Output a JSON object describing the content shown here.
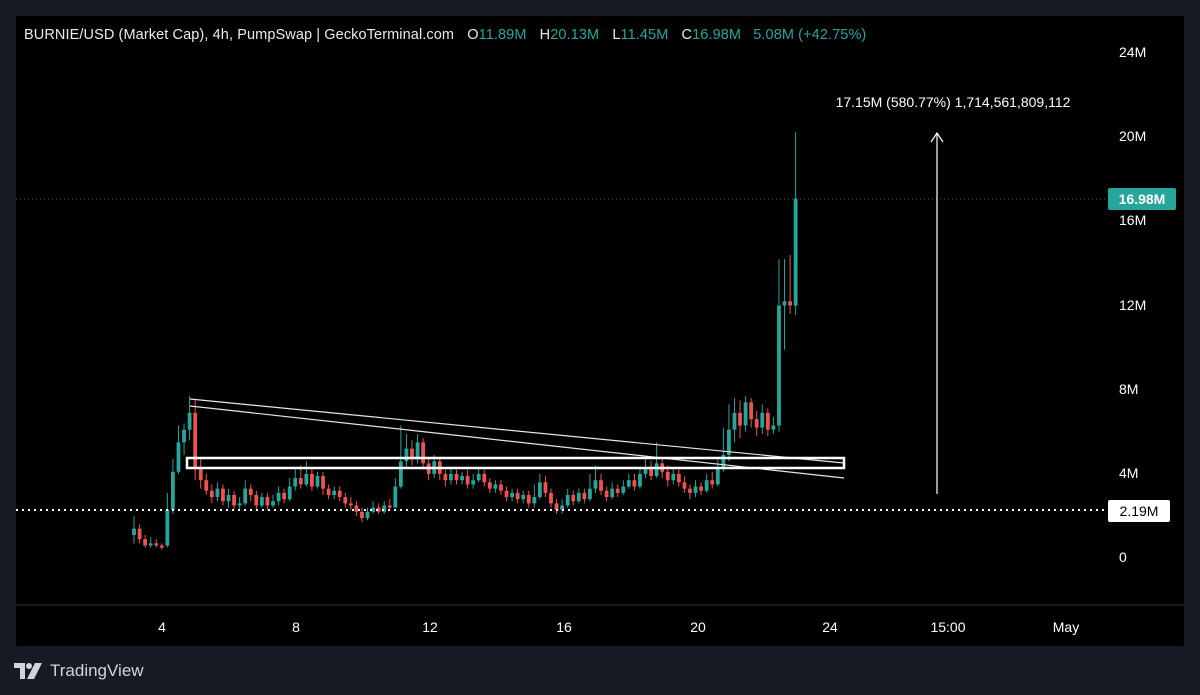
{
  "header": {
    "symbol_title": "BURNIE/USD (Market Cap), 4h, PumpSwap | GeckoTerminal.com",
    "open_key": "O",
    "open": "11.89M",
    "high_key": "H",
    "high": "20.13M",
    "low_key": "L",
    "low": "11.45M",
    "close_key": "C",
    "close": "16.98M",
    "change": "5.08M (+42.75%)"
  },
  "annotation": {
    "measure_label": "17.15M (580.77%) 1,714,561,809,112"
  },
  "price_scale": {
    "ticks": [
      "24M",
      "20M",
      "16M",
      "12M",
      "8M",
      "4M",
      "0"
    ],
    "current_price_badge": "16.98M",
    "support_badge": "2.19M"
  },
  "time_scale": {
    "ticks": [
      "4",
      "8",
      "12",
      "16",
      "20",
      "24",
      "15:00",
      "May"
    ]
  },
  "footer": {
    "brand": "TradingView"
  },
  "colors": {
    "up": "#26a69a",
    "down": "#ef5350",
    "background": "#000000",
    "frame": "#161a25",
    "badge": "#26a69a"
  },
  "chart_data": {
    "type": "candlestick",
    "title": "BURNIE/USD (Market Cap), 4h, PumpSwap | GeckoTerminal.com",
    "y_unit": "M USD",
    "ylim": [
      -2,
      26
    ],
    "x_range": [
      "Apr 3 00:00",
      "May 2 00:00"
    ],
    "last_close": 16.98,
    "support_level": 2.19,
    "candles": [
      [
        1.0,
        1.3,
        1.9,
        0.6
      ],
      [
        1.3,
        0.8,
        1.5,
        0.6
      ],
      [
        0.8,
        0.5,
        1.0,
        0.4
      ],
      [
        0.5,
        0.6,
        0.9,
        0.4
      ],
      [
        0.6,
        0.5,
        0.8,
        0.4
      ],
      [
        0.5,
        0.4,
        0.6,
        0.3
      ],
      [
        0.5,
        2.2,
        3.0,
        0.4
      ],
      [
        2.2,
        4.0,
        4.6,
        2.0
      ],
      [
        4.0,
        5.4,
        6.2,
        3.9
      ],
      [
        5.4,
        6.0,
        6.3,
        4.8
      ],
      [
        6.0,
        6.8,
        7.6,
        5.5
      ],
      [
        6.8,
        4.2,
        7.4,
        3.6
      ],
      [
        4.2,
        3.6,
        4.6,
        3.2
      ],
      [
        3.6,
        3.1,
        3.9,
        2.9
      ],
      [
        3.1,
        2.8,
        3.4,
        2.5
      ],
      [
        2.8,
        3.2,
        3.5,
        2.6
      ],
      [
        3.2,
        2.6,
        3.4,
        2.4
      ],
      [
        2.6,
        2.9,
        3.2,
        2.3
      ],
      [
        2.9,
        2.4,
        3.1,
        2.2
      ],
      [
        2.4,
        2.5,
        2.8,
        2.2
      ],
      [
        2.5,
        3.2,
        3.6,
        2.4
      ],
      [
        3.2,
        2.9,
        3.4,
        2.6
      ],
      [
        2.9,
        2.4,
        3.1,
        2.2
      ],
      [
        2.4,
        2.8,
        3.0,
        2.3
      ],
      [
        2.8,
        2.4,
        3.0,
        2.2
      ],
      [
        2.4,
        2.6,
        2.9,
        2.3
      ],
      [
        2.6,
        3.0,
        3.3,
        2.4
      ],
      [
        3.0,
        2.7,
        3.2,
        2.5
      ],
      [
        2.7,
        3.3,
        3.7,
        2.6
      ],
      [
        3.3,
        3.7,
        4.1,
        3.1
      ],
      [
        3.7,
        3.4,
        4.3,
        3.2
      ],
      [
        3.4,
        3.9,
        4.5,
        3.3
      ],
      [
        3.9,
        3.3,
        4.2,
        3.1
      ],
      [
        3.3,
        3.8,
        4.0,
        3.2
      ],
      [
        3.8,
        3.2,
        4.0,
        2.9
      ],
      [
        3.2,
        2.9,
        3.4,
        2.7
      ],
      [
        2.9,
        3.1,
        3.3,
        2.7
      ],
      [
        3.1,
        2.8,
        3.3,
        2.6
      ],
      [
        2.8,
        2.5,
        3.0,
        2.3
      ],
      [
        2.5,
        2.4,
        2.8,
        2.2
      ],
      [
        2.4,
        2.1,
        2.6,
        1.9
      ],
      [
        2.1,
        1.8,
        2.3,
        1.6
      ],
      [
        1.8,
        2.1,
        2.3,
        1.7
      ],
      [
        2.1,
        2.3,
        2.6,
        2.0
      ],
      [
        2.3,
        2.1,
        2.5,
        2.0
      ],
      [
        2.1,
        2.4,
        2.6,
        2.0
      ],
      [
        2.4,
        2.3,
        2.7,
        2.2
      ],
      [
        2.3,
        3.3,
        3.7,
        2.3
      ],
      [
        3.3,
        4.5,
        6.2,
        3.2
      ],
      [
        4.5,
        5.1,
        5.8,
        4.2
      ],
      [
        5.1,
        4.6,
        5.5,
        4.3
      ],
      [
        4.6,
        5.4,
        5.8,
        4.4
      ],
      [
        5.4,
        4.4,
        5.6,
        4.1
      ],
      [
        4.4,
        3.9,
        4.6,
        3.6
      ],
      [
        3.9,
        4.5,
        4.8,
        3.7
      ],
      [
        4.5,
        3.9,
        4.7,
        3.6
      ],
      [
        3.9,
        3.6,
        4.1,
        3.3
      ],
      [
        3.6,
        3.9,
        4.2,
        3.4
      ],
      [
        3.9,
        3.6,
        4.1,
        3.4
      ],
      [
        3.6,
        3.8,
        4.0,
        3.4
      ],
      [
        3.8,
        3.4,
        4.1,
        3.2
      ],
      [
        3.4,
        3.6,
        3.9,
        3.2
      ],
      [
        3.6,
        3.9,
        4.2,
        3.5
      ],
      [
        3.9,
        3.5,
        4.1,
        3.3
      ],
      [
        3.5,
        3.2,
        3.7,
        3.0
      ],
      [
        3.2,
        3.4,
        3.6,
        3.0
      ],
      [
        3.4,
        3.1,
        3.6,
        2.9
      ],
      [
        3.1,
        2.8,
        3.3,
        2.6
      ],
      [
        2.8,
        3.0,
        3.2,
        2.6
      ],
      [
        3.0,
        2.7,
        3.2,
        2.5
      ],
      [
        2.7,
        2.9,
        3.1,
        2.5
      ],
      [
        2.9,
        2.5,
        3.1,
        2.3
      ],
      [
        2.5,
        2.8,
        3.4,
        2.3
      ],
      [
        2.8,
        3.5,
        3.9,
        2.7
      ],
      [
        3.5,
        3.0,
        3.8,
        2.8
      ],
      [
        3.0,
        2.5,
        3.2,
        2.3
      ],
      [
        2.5,
        2.2,
        2.7,
        2.0
      ],
      [
        2.2,
        2.4,
        2.7,
        2.0
      ],
      [
        2.4,
        2.9,
        3.2,
        2.3
      ],
      [
        2.9,
        2.6,
        3.1,
        2.4
      ],
      [
        2.6,
        3.0,
        3.2,
        2.5
      ],
      [
        3.0,
        2.7,
        3.2,
        2.5
      ],
      [
        2.7,
        3.2,
        3.9,
        2.6
      ],
      [
        3.2,
        3.6,
        4.3,
        3.0
      ],
      [
        3.6,
        3.1,
        3.9,
        2.9
      ],
      [
        3.1,
        2.8,
        3.3,
        2.6
      ],
      [
        2.8,
        3.2,
        3.5,
        2.7
      ],
      [
        3.2,
        3.0,
        3.4,
        2.8
      ],
      [
        3.0,
        3.3,
        3.6,
        2.9
      ],
      [
        3.3,
        3.6,
        3.9,
        3.2
      ],
      [
        3.6,
        3.3,
        3.9,
        3.1
      ],
      [
        3.3,
        3.9,
        4.2,
        3.2
      ],
      [
        3.9,
        4.2,
        4.6,
        3.7
      ],
      [
        4.2,
        3.8,
        4.5,
        3.6
      ],
      [
        3.8,
        4.4,
        5.4,
        3.7
      ],
      [
        4.4,
        4.0,
        4.7,
        3.7
      ],
      [
        4.0,
        3.6,
        4.3,
        3.3
      ],
      [
        3.6,
        3.9,
        4.2,
        3.4
      ],
      [
        3.9,
        3.5,
        4.1,
        3.3
      ],
      [
        3.5,
        3.2,
        3.8,
        3.0
      ],
      [
        3.2,
        3.0,
        3.4,
        2.7
      ],
      [
        3.0,
        3.3,
        3.6,
        2.8
      ],
      [
        3.3,
        3.1,
        3.5,
        2.9
      ],
      [
        3.1,
        3.6,
        3.9,
        3.0
      ],
      [
        3.6,
        3.4,
        4.0,
        3.2
      ],
      [
        3.4,
        4.2,
        4.6,
        3.3
      ],
      [
        4.2,
        4.8,
        6.1,
        4.0
      ],
      [
        4.8,
        6.0,
        7.2,
        4.5
      ],
      [
        6.0,
        6.8,
        7.5,
        5.4
      ],
      [
        6.8,
        6.2,
        7.4,
        5.6
      ],
      [
        6.2,
        7.3,
        7.6,
        5.9
      ],
      [
        7.3,
        6.5,
        7.5,
        6.1
      ],
      [
        6.5,
        6.1,
        6.9,
        5.7
      ],
      [
        6.1,
        6.8,
        7.2,
        5.8
      ],
      [
        6.8,
        6.0,
        7.0,
        5.7
      ],
      [
        6.0,
        6.2,
        6.6,
        5.8
      ],
      [
        6.2,
        11.9,
        14.1,
        5.9
      ],
      [
        11.9,
        12.1,
        14.1,
        9.8
      ],
      [
        12.1,
        11.9,
        14.3,
        11.5
      ],
      [
        11.89,
        16.98,
        20.13,
        11.45
      ]
    ]
  }
}
